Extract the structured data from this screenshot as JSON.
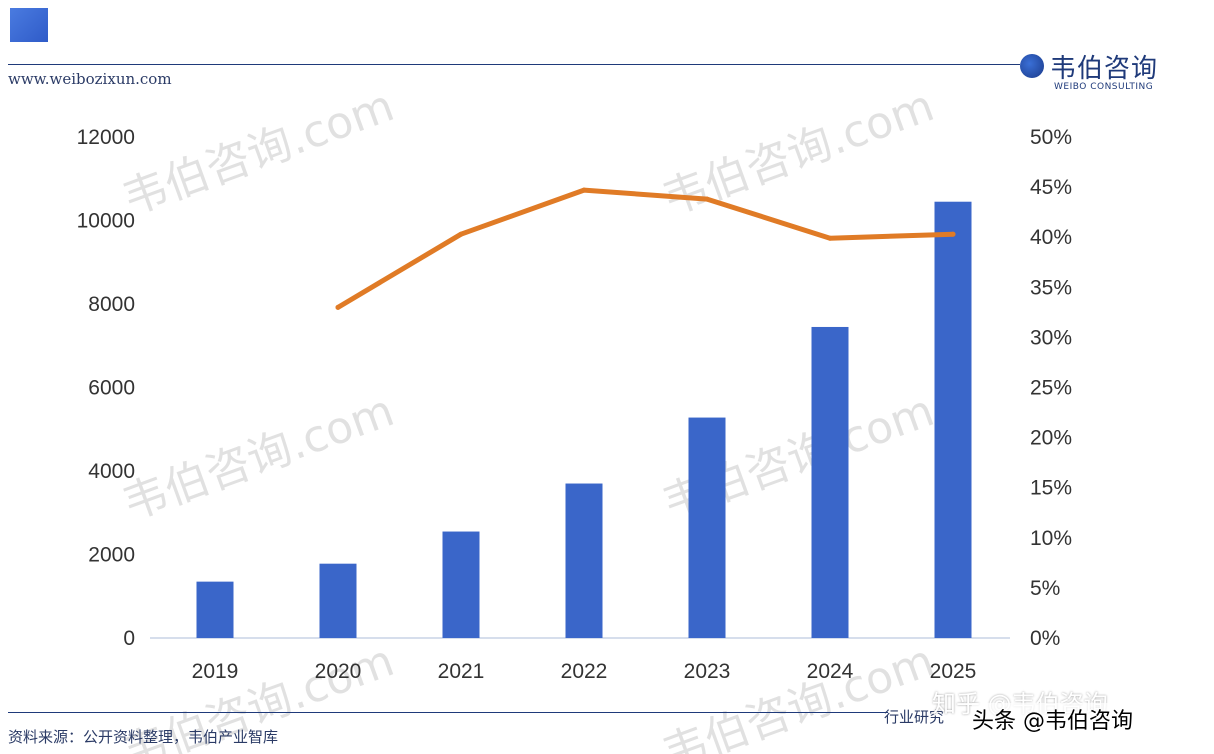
{
  "header": {
    "site_url": "www.weibozixun.com",
    "logo_name": "韦伯咨询",
    "logo_en": "WEIBO CONSULTING"
  },
  "footer": {
    "source": "资料来源：公开资料整理，韦伯产业智库",
    "right_text": "行业研究",
    "zhihu": "知乎 @韦伯咨询",
    "toutiao": "头条 @韦伯咨询"
  },
  "watermark": "韦伯咨询.com",
  "colors": {
    "bar": "#3a66c9",
    "line": "#e07b26",
    "axis": "#c9d3e6",
    "accent": "#1f3a7a"
  },
  "chart_data": {
    "type": "bar",
    "categories": [
      "2019",
      "2020",
      "2021",
      "2022",
      "2023",
      "2024",
      "2025"
    ],
    "series": [
      {
        "type": "bar",
        "axis": "left",
        "values": [
          1350,
          1780,
          2550,
          3700,
          5280,
          7450,
          10450
        ]
      },
      {
        "type": "line",
        "axis": "right",
        "values": [
          null,
          33.0,
          40.3,
          44.7,
          43.8,
          39.9,
          40.3
        ]
      }
    ],
    "y_left": {
      "min": 0,
      "max": 12000,
      "ticks": [
        "0",
        "2000",
        "4000",
        "6000",
        "8000",
        "10000",
        "12000"
      ]
    },
    "y_right": {
      "min": 0,
      "max": 50,
      "ticks": [
        "0%",
        "5%",
        "10%",
        "15%",
        "20%",
        "25%",
        "30%",
        "35%",
        "40%",
        "45%",
        "50%"
      ]
    },
    "grid": false,
    "legend": "top-left"
  }
}
